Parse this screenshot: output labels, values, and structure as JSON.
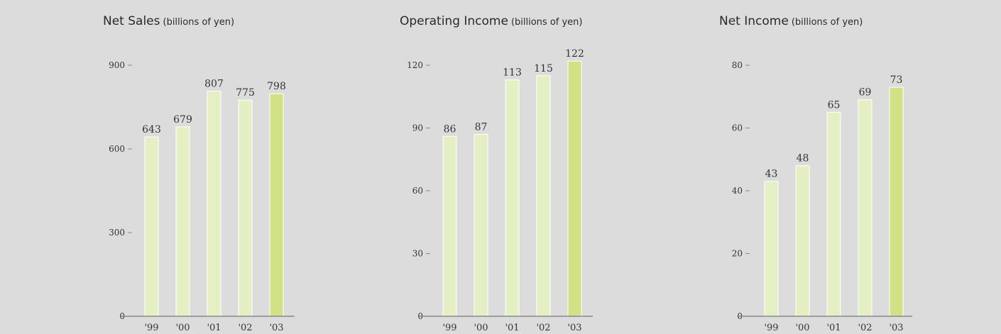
{
  "chart_data": [
    {
      "type": "bar",
      "title": "Net Sales",
      "unit": "(billions of yen)",
      "categories": [
        "'99",
        "'00",
        "'01",
        "'02",
        "'03"
      ],
      "values": [
        643,
        679,
        807,
        775,
        798
      ],
      "value_labels": [
        "643",
        "679",
        "807",
        "775",
        "798"
      ],
      "yticks": [
        0,
        300,
        600,
        900
      ],
      "ytick_labels": [
        "0",
        "300",
        "600",
        "900"
      ],
      "ylim": [
        0,
        900
      ],
      "grid": false,
      "colors": {
        "bar": "#e5efc4",
        "highlight": "#d0e186",
        "axis": "#888888"
      }
    },
    {
      "type": "bar",
      "title": "Operating Income",
      "unit": "(billions of yen)",
      "categories": [
        "'99",
        "'00",
        "'01",
        "'02",
        "'03"
      ],
      "values": [
        86,
        87,
        113,
        115,
        122
      ],
      "value_labels": [
        "86",
        "87",
        "113",
        "115",
        "122"
      ],
      "yticks": [
        0,
        30,
        60,
        90,
        120
      ],
      "ytick_labels": [
        "0",
        "30",
        "60",
        "90",
        "120"
      ],
      "ylim": [
        0,
        120
      ],
      "grid": false,
      "colors": {
        "bar": "#e5efc4",
        "highlight": "#d0e186",
        "axis": "#888888"
      }
    },
    {
      "type": "bar",
      "title": "Net Income",
      "unit": "(billions of yen)",
      "categories": [
        "'99",
        "'00",
        "'01",
        "'02",
        "'03"
      ],
      "values": [
        43,
        48,
        65,
        69,
        73
      ],
      "value_labels": [
        "43",
        "48",
        "65",
        "69",
        "73"
      ],
      "yticks": [
        0,
        20,
        40,
        60,
        80
      ],
      "ytick_labels": [
        "0",
        "20",
        "40",
        "60",
        "80"
      ],
      "ylim": [
        0,
        80
      ],
      "grid": false,
      "colors": {
        "bar": "#e5efc4",
        "highlight": "#d0e186",
        "axis": "#888888"
      }
    }
  ]
}
